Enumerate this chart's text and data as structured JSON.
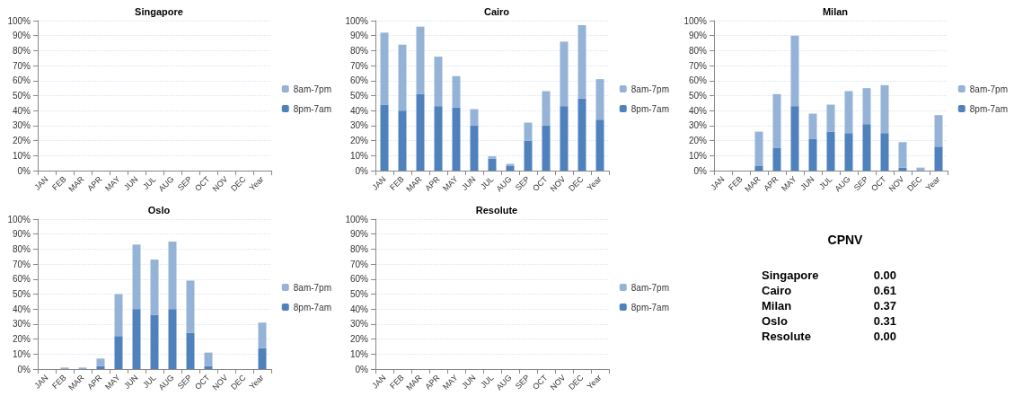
{
  "chart_data": [
    {
      "type": "bar",
      "title": "Singapore",
      "stacked": true,
      "grid": true,
      "legend": "right",
      "categories": [
        "JAN",
        "FEB",
        "MAR",
        "APR",
        "MAY",
        "JUN",
        "JUL",
        "AUG",
        "SEP",
        "OCT",
        "NOV",
        "DEC",
        "Year"
      ],
      "ylim": [
        0,
        100
      ],
      "yticks": [
        {
          "value": 0,
          "label": "0%"
        },
        {
          "value": 10,
          "label": "10%"
        },
        {
          "value": 20,
          "label": "20%"
        },
        {
          "value": 30,
          "label": "30%"
        },
        {
          "value": 40,
          "label": "40%"
        },
        {
          "value": 50,
          "label": "50%"
        },
        {
          "value": 60,
          "label": "60%"
        },
        {
          "value": 70,
          "label": "70%"
        },
        {
          "value": 80,
          "label": "80%"
        },
        {
          "value": 90,
          "label": "90%"
        },
        {
          "value": 100,
          "label": "100%"
        }
      ],
      "series": [
        {
          "name": "8pm-7am",
          "color": "#4f81bd",
          "values": [
            0,
            0,
            0,
            0,
            0,
            0,
            0,
            0,
            0,
            0,
            0,
            0,
            0
          ]
        },
        {
          "name": "8am-7pm",
          "color": "#95b3d7",
          "values": [
            0,
            0,
            0,
            0,
            0,
            0,
            0,
            0,
            0,
            0,
            0,
            0,
            0
          ]
        }
      ]
    },
    {
      "type": "bar",
      "title": "Cairo",
      "stacked": true,
      "grid": true,
      "legend": "right",
      "categories": [
        "JAN",
        "FEB",
        "MAR",
        "APR",
        "MAY",
        "JUN",
        "JUL",
        "AUG",
        "SEP",
        "OCT",
        "NOV",
        "DEC",
        "Year"
      ],
      "ylim": [
        0,
        100
      ],
      "yticks": [
        {
          "value": 0,
          "label": "0%"
        },
        {
          "value": 10,
          "label": "10%"
        },
        {
          "value": 20,
          "label": "20%"
        },
        {
          "value": 30,
          "label": "30%"
        },
        {
          "value": 40,
          "label": "40%"
        },
        {
          "value": 50,
          "label": "50%"
        },
        {
          "value": 60,
          "label": "60%"
        },
        {
          "value": 70,
          "label": "70%"
        },
        {
          "value": 80,
          "label": "80%"
        },
        {
          "value": 90,
          "label": "90%"
        },
        {
          "value": 100,
          "label": "100%"
        }
      ],
      "series": [
        {
          "name": "8pm-7am",
          "color": "#4f81bd",
          "values": [
            44,
            40,
            51,
            43,
            42,
            30,
            8,
            3,
            20,
            30,
            43,
            48,
            34
          ]
        },
        {
          "name": "8am-7pm",
          "color": "#95b3d7",
          "values": [
            48,
            44,
            45,
            33,
            21,
            11,
            1.5,
            1.5,
            12,
            23,
            43,
            49,
            27
          ]
        }
      ]
    },
    {
      "type": "bar",
      "title": "Milan",
      "stacked": true,
      "grid": true,
      "legend": "right",
      "categories": [
        "JAN",
        "FEB",
        "MAR",
        "APR",
        "MAY",
        "JUN",
        "JUL",
        "AUG",
        "SEP",
        "OCT",
        "NOV",
        "DEC",
        "Year"
      ],
      "ylim": [
        0,
        100
      ],
      "yticks": [
        {
          "value": 0,
          "label": "0%"
        },
        {
          "value": 10,
          "label": "10%"
        },
        {
          "value": 20,
          "label": "20%"
        },
        {
          "value": 30,
          "label": "30%"
        },
        {
          "value": 40,
          "label": "40%"
        },
        {
          "value": 50,
          "label": "50%"
        },
        {
          "value": 60,
          "label": "60%"
        },
        {
          "value": 70,
          "label": "70%"
        },
        {
          "value": 80,
          "label": "80%"
        },
        {
          "value": 90,
          "label": "90%"
        },
        {
          "value": 100,
          "label": "100%"
        }
      ],
      "series": [
        {
          "name": "8pm-7am",
          "color": "#4f81bd",
          "values": [
            0,
            0,
            3,
            15,
            43,
            21,
            26,
            25,
            31,
            25,
            2,
            0,
            16
          ]
        },
        {
          "name": "8am-7pm",
          "color": "#95b3d7",
          "values": [
            0,
            0,
            23,
            36,
            47,
            17,
            18,
            28,
            24,
            32,
            17,
            2,
            21
          ]
        }
      ]
    },
    {
      "type": "bar",
      "title": "Oslo",
      "stacked": true,
      "grid": true,
      "legend": "right",
      "categories": [
        "JAN",
        "FEB",
        "MAR",
        "APR",
        "MAY",
        "JUN",
        "JUL",
        "AUG",
        "SEP",
        "OCT",
        "NOV",
        "DEC",
        "Year"
      ],
      "ylim": [
        0,
        100
      ],
      "yticks": [
        {
          "value": 0,
          "label": "0%"
        },
        {
          "value": 10,
          "label": "10%"
        },
        {
          "value": 20,
          "label": "20%"
        },
        {
          "value": 30,
          "label": "30%"
        },
        {
          "value": 40,
          "label": "40%"
        },
        {
          "value": 50,
          "label": "50%"
        },
        {
          "value": 60,
          "label": "60%"
        },
        {
          "value": 70,
          "label": "70%"
        },
        {
          "value": 80,
          "label": "80%"
        },
        {
          "value": 90,
          "label": "90%"
        },
        {
          "value": 100,
          "label": "100%"
        }
      ],
      "series": [
        {
          "name": "8pm-7am",
          "color": "#4f81bd",
          "values": [
            0,
            0,
            0,
            2,
            22,
            40,
            36,
            40,
            24,
            2,
            0,
            0,
            14
          ]
        },
        {
          "name": "8am-7pm",
          "color": "#95b3d7",
          "values": [
            0,
            1,
            1,
            5,
            28,
            43,
            37,
            45,
            35,
            9,
            0,
            0,
            17
          ]
        }
      ]
    },
    {
      "type": "bar",
      "title": "Resolute",
      "stacked": true,
      "grid": true,
      "legend": "right",
      "categories": [
        "JAN",
        "FEB",
        "MAR",
        "APR",
        "MAY",
        "JUN",
        "JUL",
        "AUG",
        "SEP",
        "OCT",
        "NOV",
        "DEC",
        "Year"
      ],
      "ylim": [
        0,
        100
      ],
      "yticks": [
        {
          "value": 0,
          "label": "0%"
        },
        {
          "value": 10,
          "label": "10%"
        },
        {
          "value": 20,
          "label": "20%"
        },
        {
          "value": 30,
          "label": "30%"
        },
        {
          "value": 40,
          "label": "40%"
        },
        {
          "value": 50,
          "label": "50%"
        },
        {
          "value": 60,
          "label": "60%"
        },
        {
          "value": 70,
          "label": "70%"
        },
        {
          "value": 80,
          "label": "80%"
        },
        {
          "value": 90,
          "label": "90%"
        },
        {
          "value": 100,
          "label": "100%"
        }
      ],
      "series": [
        {
          "name": "8pm-7am",
          "color": "#4f81bd",
          "values": [
            0,
            0,
            0,
            0,
            0,
            0,
            0,
            0,
            0,
            0,
            0,
            0,
            0
          ]
        },
        {
          "name": "8am-7pm",
          "color": "#95b3d7",
          "values": [
            0,
            0,
            0,
            0,
            0,
            0,
            0,
            0,
            0,
            0,
            0,
            0,
            0
          ]
        }
      ]
    },
    {
      "type": "other",
      "title": "CPNV",
      "annotations": [
        "Singapore",
        "0.00",
        "Cairo",
        "0.61",
        "Milan",
        "0.37",
        "Oslo",
        "0.31",
        "Resolute",
        "0.00"
      ]
    }
  ]
}
